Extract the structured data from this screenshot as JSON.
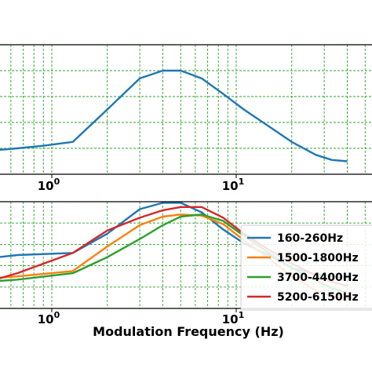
{
  "chart_data": [
    {
      "type": "line",
      "title": "",
      "xlabel": "",
      "ylabel": "",
      "xscale": "log",
      "xlim": [
        0.3,
        40
      ],
      "ylim": [
        0,
        1
      ],
      "grid": true,
      "x_ticks": [
        {
          "value": 1,
          "base": "10",
          "exp": "0"
        },
        {
          "value": 10,
          "base": "10",
          "exp": "1"
        }
      ],
      "series": [
        {
          "color": "#1f77b4",
          "x": [
            0.3,
            0.45,
            0.65,
            0.9,
            1.3,
            2.0,
            3.0,
            4.0,
            5.0,
            6.5,
            8.5,
            11,
            15,
            20,
            27,
            33,
            40
          ],
          "y": [
            0.18,
            0.18,
            0.2,
            0.22,
            0.25,
            0.5,
            0.74,
            0.8,
            0.8,
            0.74,
            0.62,
            0.5,
            0.37,
            0.25,
            0.15,
            0.11,
            0.1
          ]
        }
      ]
    },
    {
      "type": "line",
      "title": "",
      "xlabel": "Modulation Frequency (Hz)",
      "ylabel": "",
      "xscale": "log",
      "xlim": [
        0.3,
        40
      ],
      "ylim": [
        0,
        1
      ],
      "grid": true,
      "legend": "right",
      "x_ticks": [
        {
          "value": 1,
          "base": "10",
          "exp": "0"
        },
        {
          "value": 10,
          "base": "10",
          "exp": "1"
        }
      ],
      "series": [
        {
          "name": "160-260Hz",
          "color": "#1f77b4",
          "x": [
            0.3,
            0.45,
            0.65,
            1.3,
            2.0,
            3.0,
            4.0,
            5.0,
            6.5,
            8.5,
            11,
            15,
            20,
            27,
            33,
            40
          ],
          "y": [
            0.47,
            0.47,
            0.5,
            0.52,
            0.7,
            0.93,
            0.99,
            0.99,
            0.9,
            0.74,
            0.61,
            0.5,
            0.38,
            0.32,
            0.3,
            0.29
          ]
        },
        {
          "name": "1500-1800Hz",
          "color": "#ff7f0e",
          "x": [
            0.3,
            0.45,
            0.65,
            1.3,
            2.0,
            3.0,
            4.0,
            5.0,
            6.5,
            8.5,
            11,
            15,
            20,
            27,
            33,
            40
          ],
          "y": [
            0.28,
            0.28,
            0.3,
            0.35,
            0.58,
            0.78,
            0.86,
            0.88,
            0.87,
            0.79,
            0.64,
            0.47,
            0.3,
            0.17,
            0.11,
            0.08
          ]
        },
        {
          "name": "3700-4400Hz",
          "color": "#2ca02c",
          "x": [
            0.3,
            0.45,
            0.65,
            1.3,
            2.0,
            3.0,
            4.0,
            5.0,
            6.5,
            8.5,
            11,
            15,
            20,
            27,
            33,
            40
          ],
          "y": [
            0.25,
            0.25,
            0.27,
            0.33,
            0.48,
            0.65,
            0.78,
            0.86,
            0.88,
            0.82,
            0.68,
            0.52,
            0.38,
            0.26,
            0.19,
            0.15
          ]
        },
        {
          "name": "5200-6150Hz",
          "color": "#d62728",
          "x": [
            0.3,
            0.45,
            0.65,
            1.3,
            2.0,
            3.0,
            4.0,
            5.0,
            6.5,
            8.5,
            11,
            15,
            20,
            27,
            33,
            40
          ],
          "y": [
            0.25,
            0.25,
            0.33,
            0.52,
            0.73,
            0.85,
            0.92,
            0.95,
            0.95,
            0.85,
            0.7,
            0.55,
            0.42,
            0.31,
            0.25,
            0.21
          ]
        }
      ]
    }
  ]
}
